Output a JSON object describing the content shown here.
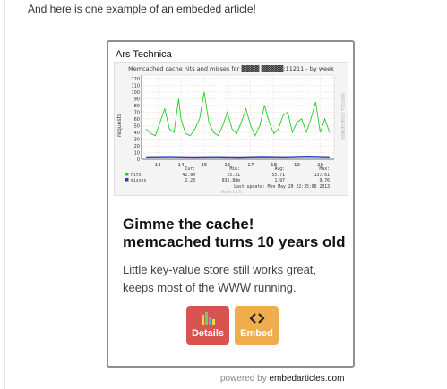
{
  "intro_text": "And here is one example of an embeded article!",
  "card": {
    "source": "Ars Technica",
    "headline_line1": "Gimme the cache!",
    "headline_line2": "memcached turns 10 years old",
    "description_line1": "Little key-value store still works great,",
    "description_line2": "keeps most of the WWW running.",
    "buttons": {
      "details": "Details",
      "embed": "Embed"
    },
    "details_icon": "bar-chart-icon",
    "embed_icon": "code-brackets-icon"
  },
  "powered_by": {
    "prefix": "powered by",
    "brand": "embedarticles.com"
  },
  "colors": {
    "details_button": "#d9534f",
    "embed_button": "#f0ad4e",
    "hits_line": "#22cc22",
    "misses_line": "#1f3fbf"
  },
  "chart_data": {
    "type": "line",
    "title": "Memcached cache hits and misses for ▓▓▓▓ ▓▓▓▓▓:11211 - by week",
    "ylabel": "requests",
    "xlabel": "",
    "side_label": "RRDTOOL / TOBI OETIKER",
    "ylim": [
      0,
      125
    ],
    "y_ticks": [
      0,
      10,
      20,
      30,
      40,
      50,
      60,
      70,
      80,
      90,
      100,
      110,
      120
    ],
    "x_ticks": [
      "13",
      "14",
      "15",
      "16",
      "17",
      "18",
      "19",
      "20"
    ],
    "series": [
      {
        "name": "hits",
        "color": "#22cc22",
        "x": [
          12.5,
          12.7,
          12.9,
          13.1,
          13.3,
          13.5,
          13.7,
          13.9,
          14.0,
          14.2,
          14.4,
          14.6,
          14.8,
          15.0,
          15.2,
          15.4,
          15.6,
          15.8,
          16.0,
          16.2,
          16.4,
          16.6,
          16.8,
          17.0,
          17.2,
          17.4,
          17.6,
          17.8,
          18.0,
          18.2,
          18.4,
          18.6,
          18.8,
          19.0,
          19.2,
          19.4,
          19.6,
          19.8,
          20.0,
          20.2,
          20.4
        ],
        "values": [
          45,
          38,
          35,
          55,
          75,
          45,
          40,
          90,
          60,
          38,
          35,
          45,
          60,
          100,
          55,
          40,
          35,
          50,
          70,
          45,
          38,
          55,
          75,
          50,
          35,
          50,
          80,
          55,
          38,
          45,
          65,
          70,
          40,
          55,
          60,
          40,
          60,
          85,
          40,
          60,
          40
        ]
      },
      {
        "name": "misses",
        "color": "#1f3fbf",
        "x": [
          12.5,
          13.5,
          14.5,
          15.5,
          16.5,
          17.5,
          18.5,
          19.5,
          20.4
        ],
        "values": [
          2.3,
          2.5,
          2.1,
          2.4,
          2.0,
          2.6,
          2.2,
          3.0,
          2.3
        ]
      }
    ],
    "legend": {
      "headers": [
        "Cur:",
        "Min:",
        "Avg:",
        "Max:"
      ],
      "rows": [
        {
          "name": "hits",
          "cur": "42.84",
          "min": "25.31",
          "avg": "55.71",
          "max": "137.61"
        },
        {
          "name": "misses",
          "cur": "2.28",
          "min": "835.88m",
          "avg": "1.97",
          "max": "9.76"
        }
      ]
    },
    "last_update": "Last update:  Mon May 20 22:35:06 2013",
    "footer": "Munin 1.4.5"
  }
}
